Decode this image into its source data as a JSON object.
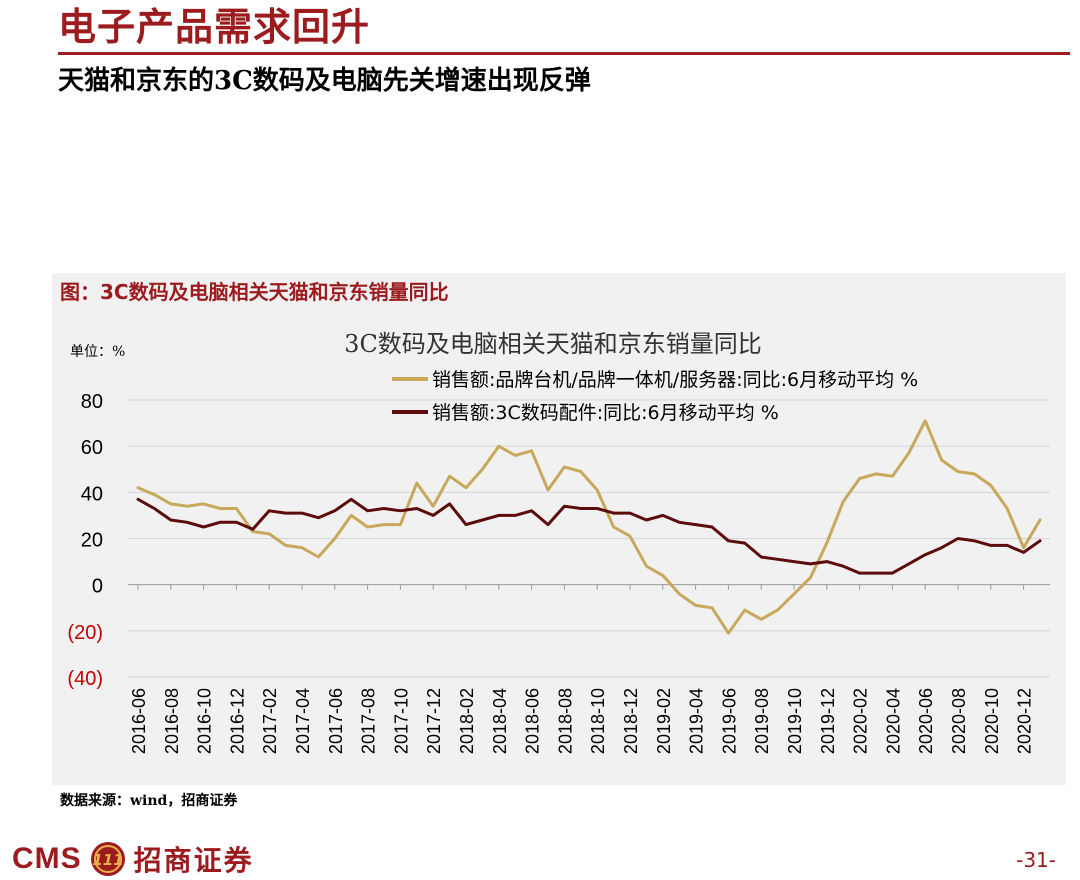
{
  "header": {
    "title": "电子产品需求回升",
    "subtitle": "天猫和京东的3C数码及电脑先关增速出现反弹"
  },
  "figure": {
    "caption": "图：3C数码及电脑相关天猫和京东销量同比",
    "source": "数据来源：wind，招商证券"
  },
  "footer": {
    "logo_text": "CMS",
    "logo_cn": "招商证券",
    "logo_emblem_text": "111",
    "page_number": "-31-"
  },
  "colors": {
    "brand": "#9b1b1e",
    "series_gold": "#c8a85a",
    "series_dark": "#5c0c0c",
    "negative_tick": "#c00000"
  },
  "chart_data": {
    "type": "line",
    "title": "3C数码及电脑相关天猫和京东销量同比",
    "unit_label": "单位：%",
    "ylim": [
      -40,
      80
    ],
    "yticks": [
      {
        "value": 80,
        "label": "80"
      },
      {
        "value": 60,
        "label": "60"
      },
      {
        "value": 40,
        "label": "40"
      },
      {
        "value": 20,
        "label": "20"
      },
      {
        "value": 0,
        "label": "0"
      },
      {
        "value": -20,
        "label": "(20)"
      },
      {
        "value": -40,
        "label": "(40)"
      }
    ],
    "grid": true,
    "legend_position": "top",
    "x": [
      "2016-06",
      "2016-07",
      "2016-08",
      "2016-09",
      "2016-10",
      "2016-11",
      "2016-12",
      "2017-01",
      "2017-02",
      "2017-03",
      "2017-04",
      "2017-05",
      "2017-06",
      "2017-07",
      "2017-08",
      "2017-09",
      "2017-10",
      "2017-11",
      "2017-12",
      "2018-01",
      "2018-02",
      "2018-03",
      "2018-04",
      "2018-05",
      "2018-06",
      "2018-07",
      "2018-08",
      "2018-09",
      "2018-10",
      "2018-11",
      "2018-12",
      "2019-01",
      "2019-02",
      "2019-03",
      "2019-04",
      "2019-05",
      "2019-06",
      "2019-07",
      "2019-08",
      "2019-09",
      "2019-10",
      "2019-11",
      "2019-12",
      "2020-01",
      "2020-02",
      "2020-03",
      "2020-04",
      "2020-05",
      "2020-06",
      "2020-07",
      "2020-08",
      "2020-09",
      "2020-10",
      "2020-11",
      "2020-12",
      "2021-01"
    ],
    "x_tick_labels": [
      "2016-06",
      "2016-08",
      "2016-10",
      "2016-12",
      "2017-02",
      "2017-04",
      "2017-06",
      "2017-08",
      "2017-10",
      "2017-12",
      "2018-02",
      "2018-04",
      "2018-06",
      "2018-08",
      "2018-10",
      "2018-12",
      "2019-02",
      "2019-04",
      "2019-06",
      "2019-08",
      "2019-10",
      "2019-12",
      "2020-02",
      "2020-04",
      "2020-06",
      "2020-08",
      "2020-10",
      "2020-12"
    ],
    "series": [
      {
        "name": "销售额:品牌台机/品牌一体机/服务器:同比:6月移动平均 %",
        "color": "#c8a85a",
        "values": [
          42,
          39,
          35,
          34,
          35,
          33,
          33,
          23,
          22,
          17,
          16,
          12,
          20,
          30,
          25,
          26,
          26,
          44,
          34,
          47,
          42,
          50,
          60,
          56,
          58,
          41,
          51,
          49,
          41,
          25,
          21,
          8,
          4,
          -4,
          -9,
          -10,
          -21,
          -11,
          -15,
          -11,
          -4,
          3,
          18,
          36,
          46,
          48,
          47,
          57,
          71,
          54,
          49,
          48,
          43,
          33,
          16,
          28
        ]
      },
      {
        "name": "销售额:3C数码配件:同比:6月移动平均 %",
        "color": "#5c0c0c",
        "values": [
          37,
          33,
          28,
          27,
          25,
          27,
          27,
          24,
          32,
          31,
          31,
          29,
          32,
          37,
          32,
          33,
          32,
          33,
          30,
          35,
          26,
          28,
          30,
          30,
          32,
          26,
          34,
          33,
          33,
          31,
          31,
          28,
          30,
          27,
          26,
          25,
          19,
          18,
          12,
          11,
          10,
          9,
          10,
          8,
          5,
          5,
          5,
          9,
          13,
          16,
          20,
          19,
          17,
          17,
          14,
          19
        ]
      }
    ]
  }
}
